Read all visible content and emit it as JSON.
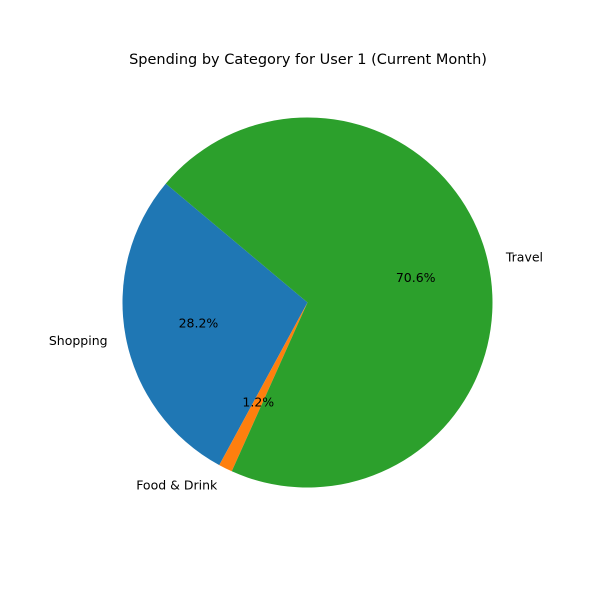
{
  "chart_data": {
    "type": "pie",
    "title": "Spending by Category for User 1 (Current Month)",
    "slices": [
      {
        "label": "Shopping",
        "value": 28.2,
        "percent_label": "28.2%",
        "color": "#1f77b4"
      },
      {
        "label": "Food & Drink",
        "value": 1.2,
        "percent_label": "1.2%",
        "color": "#ff7f0e"
      },
      {
        "label": "Travel",
        "value": 70.6,
        "percent_label": "70.6%",
        "color": "#2ca02c"
      }
    ],
    "start_angle_deg": 140,
    "direction": "counterclockwise",
    "legend": "none"
  }
}
